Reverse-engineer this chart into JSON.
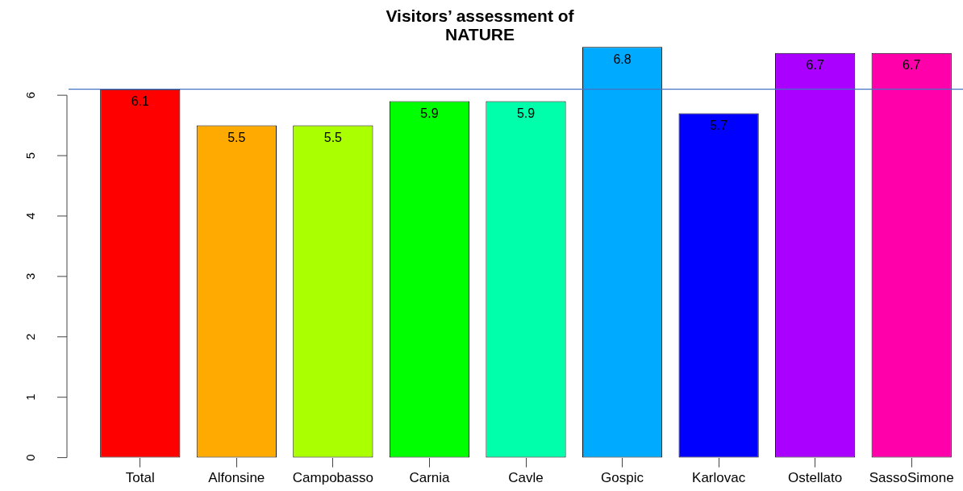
{
  "chart_data": {
    "type": "bar",
    "title": "Visitors’ assessment of\nNATURE",
    "categories": [
      "Total",
      "Alfonsine",
      "Campobasso",
      "Carnia",
      "Cavle",
      "Gospic",
      "Karlovac",
      "Ostellato",
      "SassoSimone"
    ],
    "values": [
      6.1,
      5.5,
      5.5,
      5.9,
      5.9,
      6.8,
      5.7,
      6.7,
      6.7
    ],
    "colors": [
      "#ff0000",
      "#ffaa00",
      "#aaff00",
      "#00ff00",
      "#00ffaa",
      "#00aaff",
      "#0000ff",
      "#aa00ff",
      "#ff00aa"
    ],
    "ylim": [
      0,
      6.8
    ],
    "yticks": [
      0,
      1,
      2,
      3,
      4,
      5,
      6
    ],
    "data_labels": true,
    "ref_lines": [
      {
        "axis": "y",
        "value": 6.1,
        "color": "#4472c4"
      }
    ]
  }
}
